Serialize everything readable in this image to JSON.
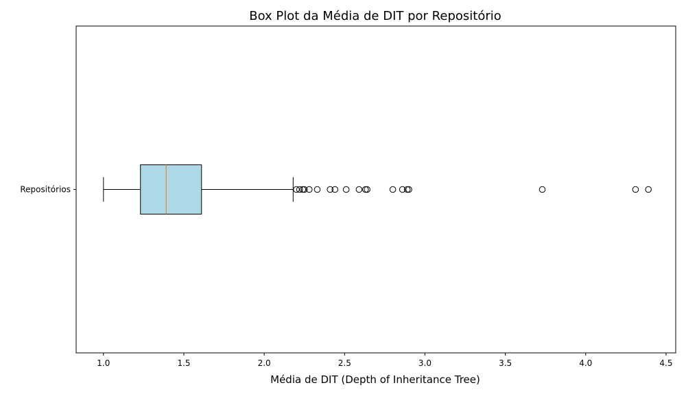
{
  "chart_data": {
    "type": "boxplot",
    "orientation": "horizontal",
    "title": "Box Plot da Média de DIT por Repositório",
    "xlabel": "Média de DIT (Depth of Inheritance Tree)",
    "ylabel": "",
    "xlim": [
      0.83,
      4.56
    ],
    "x_ticks": [
      1.0,
      1.5,
      2.0,
      2.5,
      3.0,
      3.5,
      4.0,
      4.5
    ],
    "x_tick_labels": [
      "1.0",
      "1.5",
      "2.0",
      "2.5",
      "3.0",
      "3.5",
      "4.0",
      "4.5"
    ],
    "categories": [
      "Repositórios"
    ],
    "grid": false,
    "series": [
      {
        "category": "Repositórios",
        "whisker_low": 1.0,
        "q1": 1.23,
        "median": 1.39,
        "q3": 1.61,
        "whisker_high": 2.18,
        "outliers": [
          2.2,
          2.22,
          2.24,
          2.25,
          2.28,
          2.33,
          2.41,
          2.44,
          2.51,
          2.59,
          2.63,
          2.64,
          2.8,
          2.86,
          2.89,
          2.9,
          3.73,
          4.31,
          4.39
        ]
      }
    ],
    "colors": {
      "box_fill": "#add8e6",
      "box_edge": "#000000",
      "median": "#e08a3c",
      "whisker": "#000000",
      "outlier_edge": "#000000"
    }
  }
}
